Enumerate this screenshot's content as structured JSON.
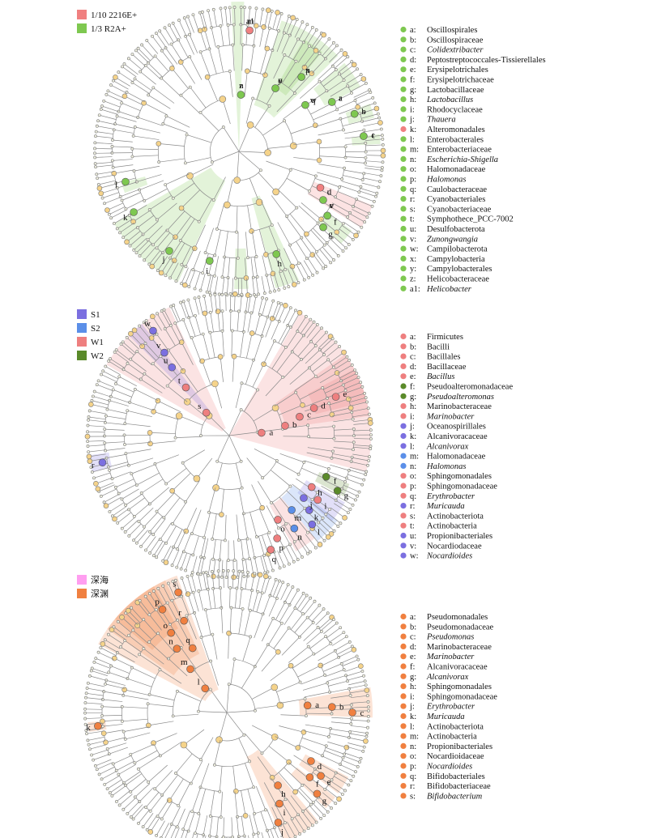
{
  "panels": [
    {
      "id": "p1",
      "legend": [
        {
          "label": "1/10 2216E+",
          "color": "#f08080"
        },
        {
          "label": "1/3 R2A+",
          "color": "#7ec850"
        }
      ],
      "taxa": [
        {
          "key": "a:",
          "name": "Oscillospirales",
          "italic": false,
          "group": 1
        },
        {
          "key": "b:",
          "name": "Oscillospiraceae",
          "italic": false,
          "group": 1
        },
        {
          "key": "c:",
          "name": "Colidextribacter",
          "italic": true,
          "group": 1
        },
        {
          "key": "d:",
          "name": "Peptostreptococcales-Tissierellales",
          "italic": false,
          "group": 1
        },
        {
          "key": "e:",
          "name": "Erysipelotrichales",
          "italic": false,
          "group": 1
        },
        {
          "key": "f:",
          "name": "Erysipelotrichaceae",
          "italic": false,
          "group": 1
        },
        {
          "key": "g:",
          "name": "Lactobacillaceae",
          "italic": false,
          "group": 1
        },
        {
          "key": "h:",
          "name": "Lactobacillus",
          "italic": true,
          "group": 1
        },
        {
          "key": "i:",
          "name": "Rhodocyclaceae",
          "italic": false,
          "group": 1
        },
        {
          "key": "j:",
          "name": "Thauera",
          "italic": true,
          "group": 1
        },
        {
          "key": "k:",
          "name": "Alteromonadales",
          "italic": false,
          "group": 0
        },
        {
          "key": "l:",
          "name": "Enterobacterales",
          "italic": false,
          "group": 1
        },
        {
          "key": "m:",
          "name": "Enterobacteriaceae",
          "italic": false,
          "group": 1
        },
        {
          "key": "n:",
          "name": "Escherichia-Shigella",
          "italic": true,
          "group": 1
        },
        {
          "key": "o:",
          "name": "Halomonadaceae",
          "italic": false,
          "group": 1
        },
        {
          "key": "p:",
          "name": "Halomonas",
          "italic": true,
          "group": 1
        },
        {
          "key": "q:",
          "name": "Caulobacteraceae",
          "italic": false,
          "group": 1
        },
        {
          "key": "r:",
          "name": "Cyanobacteriales",
          "italic": false,
          "group": 1
        },
        {
          "key": "s:",
          "name": "Cyanobacteriaceae",
          "italic": false,
          "group": 1
        },
        {
          "key": "t:",
          "name": "Symphothece_PCC-7002",
          "italic": false,
          "group": 1
        },
        {
          "key": "u:",
          "name": "Desulfobacterota",
          "italic": false,
          "group": 1
        },
        {
          "key": "v:",
          "name": "Zunongwangia",
          "italic": true,
          "group": 1
        },
        {
          "key": "w:",
          "name": "Campilobacterota",
          "italic": false,
          "group": 1
        },
        {
          "key": "x:",
          "name": "Campylobacteria",
          "italic": false,
          "group": 1
        },
        {
          "key": "y:",
          "name": "Campylobacterales",
          "italic": false,
          "group": 1
        },
        {
          "key": "z:",
          "name": "Helicobacteraceae",
          "italic": false,
          "group": 1
        },
        {
          "key": "a1:",
          "name": "Helicobacter",
          "italic": true,
          "group": 1
        }
      ]
    },
    {
      "id": "p2",
      "legend": [
        {
          "label": "S1",
          "color": "#7b6fe0"
        },
        {
          "label": "S2",
          "color": "#5b8fe8"
        },
        {
          "label": "W1",
          "color": "#ee7f7f"
        },
        {
          "label": "W2",
          "color": "#5a8a2a"
        }
      ],
      "taxa": [
        {
          "key": "a:",
          "name": "Firmicutes",
          "italic": false,
          "group": 2
        },
        {
          "key": "b:",
          "name": "Bacilli",
          "italic": false,
          "group": 2
        },
        {
          "key": "c:",
          "name": "Bacillales",
          "italic": false,
          "group": 2
        },
        {
          "key": "d:",
          "name": "Bacillaceae",
          "italic": false,
          "group": 2
        },
        {
          "key": "e:",
          "name": "Bacillus",
          "italic": true,
          "group": 2
        },
        {
          "key": "f:",
          "name": "Pseudoalteromonadaceae",
          "italic": false,
          "group": 3
        },
        {
          "key": "g:",
          "name": "Pseudoalteromonas",
          "italic": true,
          "group": 3
        },
        {
          "key": "h:",
          "name": "Marinobacteraceae",
          "italic": false,
          "group": 2
        },
        {
          "key": "i:",
          "name": "Marinobacter",
          "italic": true,
          "group": 2
        },
        {
          "key": "j:",
          "name": "Oceanospirillales",
          "italic": false,
          "group": 0
        },
        {
          "key": "k:",
          "name": "Alcanivoracaceae",
          "italic": false,
          "group": 0
        },
        {
          "key": "l:",
          "name": "Alcanivorax",
          "italic": true,
          "group": 0
        },
        {
          "key": "m:",
          "name": "Halomonadaceae",
          "italic": false,
          "group": 1
        },
        {
          "key": "n:",
          "name": "Halomonas",
          "italic": true,
          "group": 1
        },
        {
          "key": "o:",
          "name": "Sphingomonadales",
          "italic": false,
          "group": 2
        },
        {
          "key": "p:",
          "name": "Sphingomonadaceae",
          "italic": false,
          "group": 2
        },
        {
          "key": "q:",
          "name": "Erythrobacter",
          "italic": true,
          "group": 2
        },
        {
          "key": "r:",
          "name": "Muricauda",
          "italic": true,
          "group": 0
        },
        {
          "key": "s:",
          "name": "Actinobacteriota",
          "italic": false,
          "group": 2
        },
        {
          "key": "t:",
          "name": "Actinobacteria",
          "italic": false,
          "group": 2
        },
        {
          "key": "u:",
          "name": "Propionibacteriales",
          "italic": false,
          "group": 0
        },
        {
          "key": "v:",
          "name": "Nocardiodaceae",
          "italic": false,
          "group": 0
        },
        {
          "key": "w:",
          "name": "Nocardioides",
          "italic": true,
          "group": 0
        }
      ]
    },
    {
      "id": "p3",
      "legend": [
        {
          "label": "深海",
          "color": "#ff9ef0"
        },
        {
          "label": "深渊",
          "color": "#f08040"
        }
      ],
      "taxa": [
        {
          "key": "a:",
          "name": "Pseudomonadales",
          "italic": false,
          "group": 1
        },
        {
          "key": "b:",
          "name": "Pseudomonadaceae",
          "italic": false,
          "group": 1
        },
        {
          "key": "c:",
          "name": "Pseudomonas",
          "italic": true,
          "group": 1
        },
        {
          "key": "d:",
          "name": "Marinobacteraceae",
          "italic": false,
          "group": 1
        },
        {
          "key": "e:",
          "name": "Marinobacter",
          "italic": true,
          "group": 1
        },
        {
          "key": "f:",
          "name": "Alcanivoracaceae",
          "italic": false,
          "group": 1
        },
        {
          "key": "g:",
          "name": "Alcanivorax",
          "italic": true,
          "group": 1
        },
        {
          "key": "h:",
          "name": "Sphingomonadales",
          "italic": false,
          "group": 1
        },
        {
          "key": "i:",
          "name": "Sphingomonadaceae",
          "italic": false,
          "group": 1
        },
        {
          "key": "j:",
          "name": "Erythrobacter",
          "italic": true,
          "group": 1
        },
        {
          "key": "k:",
          "name": "Muricauda",
          "italic": true,
          "group": 1
        },
        {
          "key": "l:",
          "name": "Actinobacteriota",
          "italic": false,
          "group": 1
        },
        {
          "key": "m:",
          "name": "Actinobacteria",
          "italic": false,
          "group": 1
        },
        {
          "key": "n:",
          "name": "Propionibacteriales",
          "italic": false,
          "group": 1
        },
        {
          "key": "o:",
          "name": "Nocardioidaceae",
          "italic": false,
          "group": 1
        },
        {
          "key": "p:",
          "name": "Nocardioides",
          "italic": true,
          "group": 1
        },
        {
          "key": "q:",
          "name": "Bifidobacteriales",
          "italic": false,
          "group": 1
        },
        {
          "key": "r:",
          "name": "Bifidobacteriaceae",
          "italic": false,
          "group": 1
        },
        {
          "key": "s:",
          "name": "Bifidobacterium",
          "italic": true,
          "group": 1
        }
      ]
    }
  ],
  "clade_letters": {
    "p1": [
      "a1",
      "z",
      "y",
      "x",
      "w",
      "a",
      "b",
      "c",
      "d",
      "e",
      "f",
      "g",
      "h",
      "i",
      "j",
      "k",
      "l",
      "m",
      "n",
      "o",
      "p",
      "q",
      "r",
      "s",
      "t",
      "u",
      "v"
    ],
    "p2": [
      "a",
      "b",
      "c",
      "d",
      "e",
      "f",
      "g",
      "h",
      "i",
      "j",
      "k",
      "l",
      "m",
      "n",
      "o",
      "p",
      "q",
      "r",
      "s",
      "t",
      "u",
      "v",
      "w"
    ],
    "p3": [
      "a",
      "b",
      "c",
      "d",
      "e",
      "f",
      "g",
      "h",
      "i",
      "j",
      "k",
      "l",
      "m",
      "n",
      "o",
      "p",
      "q",
      "r",
      "s"
    ]
  }
}
